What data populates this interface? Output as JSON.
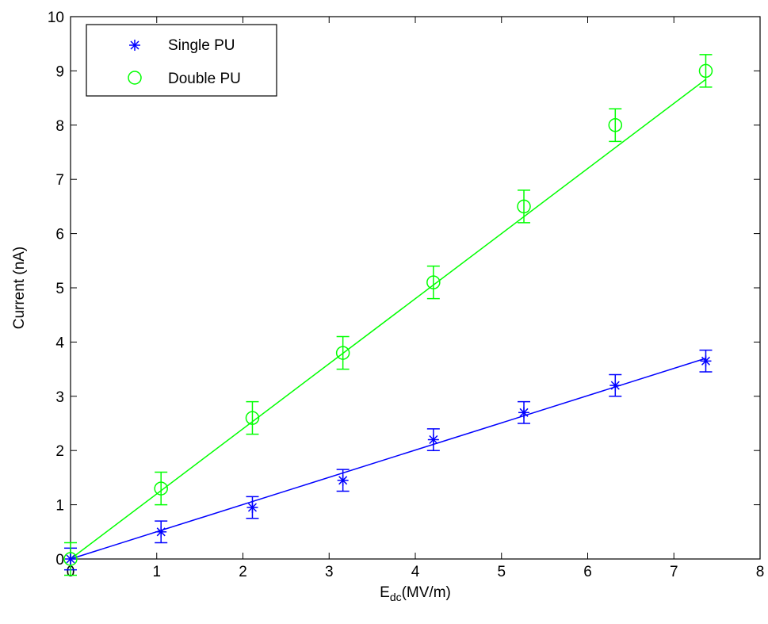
{
  "chart_data": {
    "type": "scatter",
    "title": "",
    "xlabel": {
      "main": "E",
      "sub": "dc",
      "unit": "(MV/m)"
    },
    "ylabel": "Current (nA)",
    "xlim": [
      0,
      8
    ],
    "ylim": [
      0,
      10
    ],
    "xticks": [
      "0",
      "1",
      "2",
      "3",
      "4",
      "5",
      "6",
      "7",
      "8"
    ],
    "yticks": [
      "0",
      "1",
      "2",
      "3",
      "4",
      "5",
      "6",
      "7",
      "8",
      "9",
      "10"
    ],
    "grid": false,
    "legend_position": "top-left",
    "series": [
      {
        "name": "Single PU",
        "marker": "asterisk",
        "color": "#0000ff",
        "x": [
          0,
          1.05,
          2.11,
          3.16,
          4.21,
          5.26,
          6.32,
          7.37
        ],
        "y": [
          0,
          0.5,
          0.95,
          1.45,
          2.2,
          2.7,
          3.2,
          3.65
        ],
        "error": [
          0.2,
          0.2,
          0.2,
          0.2,
          0.2,
          0.2,
          0.2,
          0.2
        ],
        "fit": {
          "slope": 0.502,
          "intercept": 0
        }
      },
      {
        "name": "Double PU",
        "marker": "circle",
        "color": "#00ff00",
        "x": [
          0,
          1.05,
          2.11,
          3.16,
          4.21,
          5.26,
          6.32,
          7.37
        ],
        "y": [
          0,
          1.3,
          2.6,
          3.8,
          5.1,
          6.5,
          8.0,
          9.0
        ],
        "error": [
          0.3,
          0.3,
          0.3,
          0.3,
          0.3,
          0.3,
          0.3,
          0.3
        ],
        "fit": {
          "slope": 1.2,
          "intercept": 0
        }
      }
    ]
  }
}
